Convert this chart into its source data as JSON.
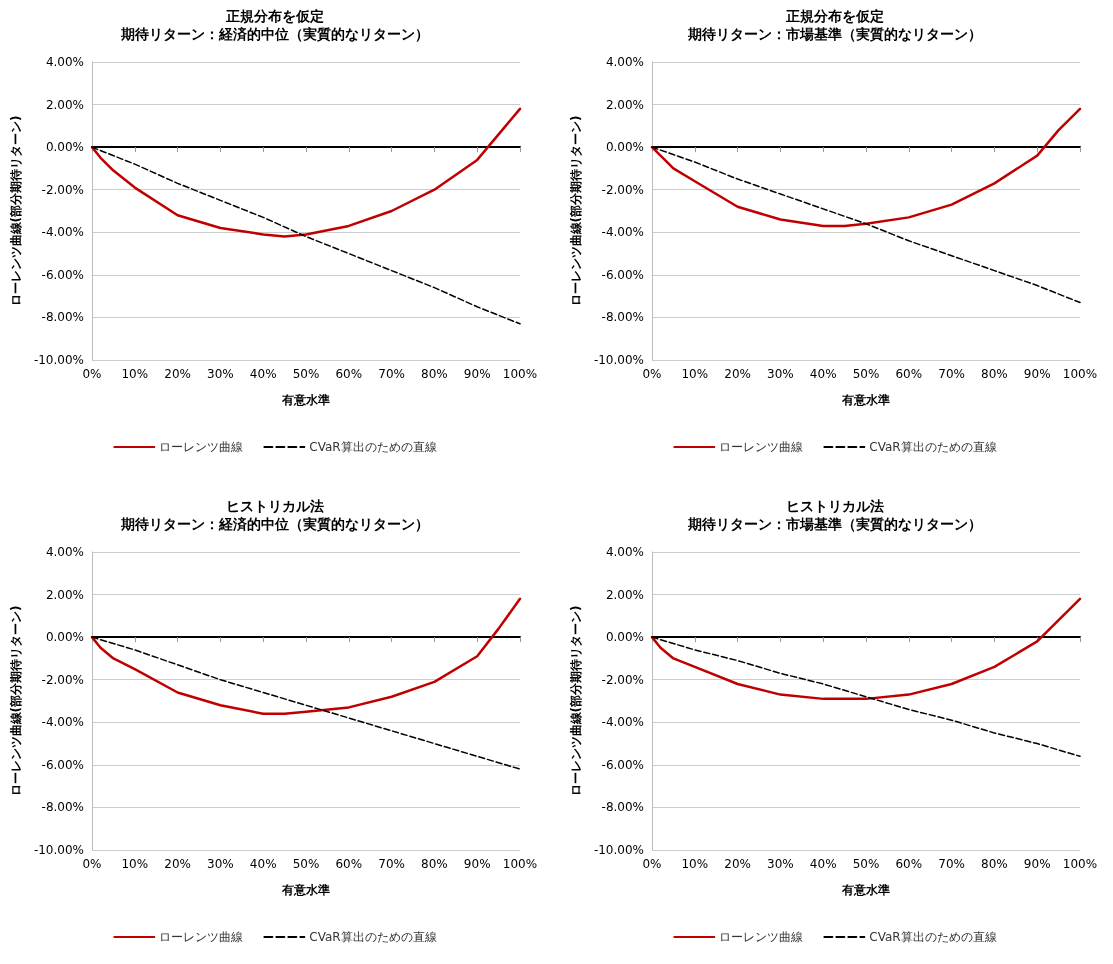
{
  "chart_data": [
    {
      "type": "line",
      "title": "正規分布を仮定",
      "subtitle": "期待リターン：経済的中位（実質的なリターン）",
      "xlabel": "有意水準",
      "ylabel": "ローレンツ曲線(部分期待リターン)",
      "xlim": [
        0,
        100
      ],
      "xticks": [
        {
          "value": 0,
          "label": "0%"
        },
        {
          "value": 10,
          "label": "10%"
        },
        {
          "value": 20,
          "label": "20%"
        },
        {
          "value": 30,
          "label": "30%"
        },
        {
          "value": 40,
          "label": "40%"
        },
        {
          "value": 50,
          "label": "50%"
        },
        {
          "value": 60,
          "label": "60%"
        },
        {
          "value": 70,
          "label": "70%"
        },
        {
          "value": 80,
          "label": "80%"
        },
        {
          "value": 90,
          "label": "90%"
        },
        {
          "value": 100,
          "label": "100%"
        }
      ],
      "ylim": [
        -10,
        4
      ],
      "yticks": [
        {
          "value": -10,
          "label": "-10.00%"
        },
        {
          "value": -8,
          "label": "-8.00%"
        },
        {
          "value": -6,
          "label": "-6.00%"
        },
        {
          "value": -4,
          "label": "-4.00%"
        },
        {
          "value": -2,
          "label": "-2.00%"
        },
        {
          "value": 0,
          "label": "0.00%"
        },
        {
          "value": 2,
          "label": "2.00%"
        },
        {
          "value": 4,
          "label": "4.00%"
        }
      ],
      "grid": "y",
      "legend": "bottom",
      "marker": "none",
      "series": [
        {
          "name": "ローレンツ曲線",
          "color": "#c00000",
          "line_style": "solid",
          "x": [
            0,
            2,
            5,
            10,
            20,
            30,
            40,
            45,
            50,
            60,
            70,
            80,
            90,
            95,
            100
          ],
          "values": [
            0,
            -0.5,
            -1.1,
            -1.9,
            -3.2,
            -3.8,
            -4.1,
            -4.2,
            -4.1,
            -3.7,
            -3.0,
            -2.0,
            -0.6,
            0.6,
            1.8
          ]
        },
        {
          "name": "CVaR算出のための直線",
          "color": "#000000",
          "line_style": "dashed",
          "x": [
            0,
            10,
            20,
            30,
            40,
            50,
            60,
            70,
            80,
            90,
            100
          ],
          "values": [
            0,
            -0.8,
            -1.7,
            -2.5,
            -3.3,
            -4.2,
            -5.0,
            -5.8,
            -6.6,
            -7.5,
            -8.3
          ]
        }
      ]
    },
    {
      "type": "line",
      "title": "正規分布を仮定",
      "subtitle": "期待リターン：市場基準（実質的なリターン）",
      "xlabel": "有意水準",
      "ylabel": "ローレンツ曲線(部分期待リターン)",
      "xlim": [
        0,
        100
      ],
      "xticks": [
        {
          "value": 0,
          "label": "0%"
        },
        {
          "value": 10,
          "label": "10%"
        },
        {
          "value": 20,
          "label": "20%"
        },
        {
          "value": 30,
          "label": "30%"
        },
        {
          "value": 40,
          "label": "40%"
        },
        {
          "value": 50,
          "label": "50%"
        },
        {
          "value": 60,
          "label": "60%"
        },
        {
          "value": 70,
          "label": "70%"
        },
        {
          "value": 80,
          "label": "80%"
        },
        {
          "value": 90,
          "label": "90%"
        },
        {
          "value": 100,
          "label": "100%"
        }
      ],
      "ylim": [
        -10,
        4
      ],
      "yticks": [
        {
          "value": -10,
          "label": "-10.00%"
        },
        {
          "value": -8,
          "label": "-8.00%"
        },
        {
          "value": -6,
          "label": "-6.00%"
        },
        {
          "value": -4,
          "label": "-4.00%"
        },
        {
          "value": -2,
          "label": "-2.00%"
        },
        {
          "value": 0,
          "label": "0.00%"
        },
        {
          "value": 2,
          "label": "2.00%"
        },
        {
          "value": 4,
          "label": "4.00%"
        }
      ],
      "grid": "y",
      "legend": "bottom",
      "marker": "none",
      "series": [
        {
          "name": "ローレンツ曲線",
          "color": "#c00000",
          "line_style": "solid",
          "x": [
            0,
            2,
            5,
            10,
            20,
            30,
            40,
            45,
            50,
            60,
            70,
            80,
            90,
            95,
            100
          ],
          "values": [
            0,
            -0.4,
            -1.0,
            -1.6,
            -2.8,
            -3.4,
            -3.7,
            -3.7,
            -3.6,
            -3.3,
            -2.7,
            -1.7,
            -0.4,
            0.8,
            1.8
          ]
        },
        {
          "name": "CVaR算出のための直線",
          "color": "#000000",
          "line_style": "dashed",
          "x": [
            0,
            10,
            20,
            30,
            40,
            50,
            60,
            70,
            80,
            90,
            100
          ],
          "values": [
            0,
            -0.7,
            -1.5,
            -2.2,
            -2.9,
            -3.6,
            -4.4,
            -5.1,
            -5.8,
            -6.5,
            -7.3
          ]
        }
      ]
    },
    {
      "type": "line",
      "title": "ヒストリカル法",
      "subtitle": "期待リターン：経済的中位（実質的なリターン）",
      "xlabel": "有意水準",
      "ylabel": "ローレンツ曲線(部分期待リターン)",
      "xlim": [
        0,
        100
      ],
      "xticks": [
        {
          "value": 0,
          "label": "0%"
        },
        {
          "value": 10,
          "label": "10%"
        },
        {
          "value": 20,
          "label": "20%"
        },
        {
          "value": 30,
          "label": "30%"
        },
        {
          "value": 40,
          "label": "40%"
        },
        {
          "value": 50,
          "label": "50%"
        },
        {
          "value": 60,
          "label": "60%"
        },
        {
          "value": 70,
          "label": "70%"
        },
        {
          "value": 80,
          "label": "80%"
        },
        {
          "value": 90,
          "label": "90%"
        },
        {
          "value": 100,
          "label": "100%"
        }
      ],
      "ylim": [
        -10,
        4
      ],
      "yticks": [
        {
          "value": -10,
          "label": "-10.00%"
        },
        {
          "value": -8,
          "label": "-8.00%"
        },
        {
          "value": -6,
          "label": "-6.00%"
        },
        {
          "value": -4,
          "label": "-4.00%"
        },
        {
          "value": -2,
          "label": "-2.00%"
        },
        {
          "value": 0,
          "label": "0.00%"
        },
        {
          "value": 2,
          "label": "2.00%"
        },
        {
          "value": 4,
          "label": "4.00%"
        }
      ],
      "grid": "y",
      "legend": "bottom",
      "marker": "none",
      "series": [
        {
          "name": "ローレンツ曲線",
          "color": "#c00000",
          "line_style": "solid",
          "x": [
            0,
            2,
            5,
            10,
            20,
            30,
            40,
            45,
            50,
            60,
            70,
            80,
            90,
            95,
            100
          ],
          "values": [
            0,
            -0.5,
            -1.0,
            -1.5,
            -2.6,
            -3.2,
            -3.6,
            -3.6,
            -3.5,
            -3.3,
            -2.8,
            -2.1,
            -0.9,
            0.4,
            1.8
          ]
        },
        {
          "name": "CVaR算出のための直線",
          "color": "#000000",
          "line_style": "dashed",
          "x": [
            0,
            10,
            20,
            30,
            40,
            50,
            60,
            70,
            80,
            90,
            100
          ],
          "values": [
            0,
            -0.6,
            -1.3,
            -2.0,
            -2.6,
            -3.2,
            -3.8,
            -4.4,
            -5.0,
            -5.6,
            -6.2
          ]
        }
      ]
    },
    {
      "type": "line",
      "title": "ヒストリカル法",
      "subtitle": "期待リターン：市場基準（実質的なリターン）",
      "xlabel": "有意水準",
      "ylabel": "ローレンツ曲線(部分期待リターン)",
      "xlim": [
        0,
        100
      ],
      "xticks": [
        {
          "value": 0,
          "label": "0%"
        },
        {
          "value": 10,
          "label": "10%"
        },
        {
          "value": 20,
          "label": "20%"
        },
        {
          "value": 30,
          "label": "30%"
        },
        {
          "value": 40,
          "label": "40%"
        },
        {
          "value": 50,
          "label": "50%"
        },
        {
          "value": 60,
          "label": "60%"
        },
        {
          "value": 70,
          "label": "70%"
        },
        {
          "value": 80,
          "label": "80%"
        },
        {
          "value": 90,
          "label": "90%"
        },
        {
          "value": 100,
          "label": "100%"
        }
      ],
      "ylim": [
        -10,
        4
      ],
      "yticks": [
        {
          "value": -10,
          "label": "-10.00%"
        },
        {
          "value": -8,
          "label": "-8.00%"
        },
        {
          "value": -6,
          "label": "-6.00%"
        },
        {
          "value": -4,
          "label": "-4.00%"
        },
        {
          "value": -2,
          "label": "-2.00%"
        },
        {
          "value": 0,
          "label": "0.00%"
        },
        {
          "value": 2,
          "label": "2.00%"
        },
        {
          "value": 4,
          "label": "4.00%"
        }
      ],
      "grid": "y",
      "legend": "bottom",
      "marker": "none",
      "series": [
        {
          "name": "ローレンツ曲線",
          "color": "#c00000",
          "line_style": "solid",
          "x": [
            0,
            2,
            5,
            10,
            20,
            30,
            40,
            45,
            50,
            60,
            70,
            80,
            90,
            95,
            100
          ],
          "values": [
            0,
            -0.5,
            -1.0,
            -1.4,
            -2.2,
            -2.7,
            -2.9,
            -2.9,
            -2.9,
            -2.7,
            -2.2,
            -1.4,
            -0.2,
            0.8,
            1.8
          ]
        },
        {
          "name": "CVaR算出のための直線",
          "color": "#000000",
          "line_style": "dashed",
          "x": [
            0,
            10,
            20,
            30,
            40,
            50,
            60,
            70,
            80,
            90,
            100
          ],
          "values": [
            0,
            -0.6,
            -1.1,
            -1.7,
            -2.2,
            -2.8,
            -3.4,
            -3.9,
            -4.5,
            -5.0,
            -5.6
          ]
        }
      ]
    }
  ]
}
